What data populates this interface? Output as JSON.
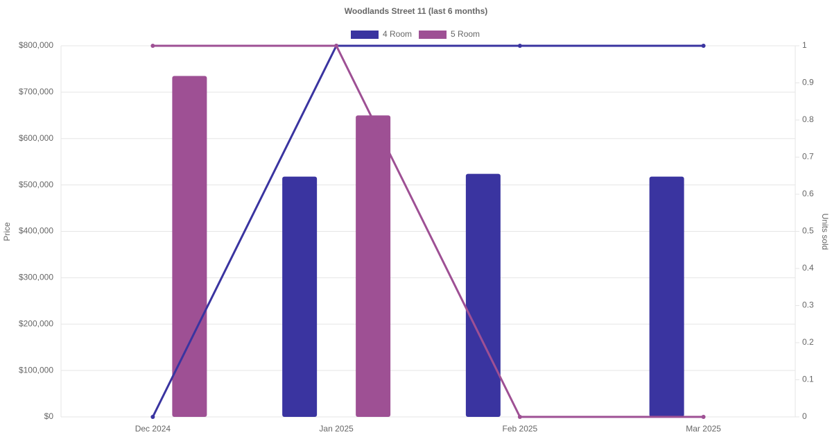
{
  "chart_data": {
    "type": "bar-line",
    "title": "Woodlands Street 11 (last 6 months)",
    "categories": [
      "Dec 2024",
      "Jan 2025",
      "Feb 2025",
      "Mar 2025"
    ],
    "series": [
      {
        "name": "4 Room",
        "type": "bar",
        "color": "#3a34a0",
        "values": [
          null,
          518000,
          524000,
          518000
        ]
      },
      {
        "name": "5 Room",
        "type": "bar",
        "color": "#9e5094",
        "values": [
          735000,
          650000,
          null,
          null
        ]
      },
      {
        "type": "line",
        "axis": "y2",
        "color": "#3a34a0",
        "values": [
          0,
          1,
          1,
          1
        ]
      },
      {
        "type": "line",
        "axis": "y2",
        "color": "#9e5094",
        "values": [
          1,
          1,
          0,
          0
        ]
      }
    ],
    "ylabel": "Price",
    "y2label": "Units sold",
    "ylim": [
      0,
      800000
    ],
    "yticks": [
      {
        "value": 0,
        "label": "$0"
      },
      {
        "value": 100000,
        "label": "$100,000"
      },
      {
        "value": 200000,
        "label": "$200,000"
      },
      {
        "value": 300000,
        "label": "$300,000"
      },
      {
        "value": 400000,
        "label": "$400,000"
      },
      {
        "value": 500000,
        "label": "$500,000"
      },
      {
        "value": 600000,
        "label": "$600,000"
      },
      {
        "value": 700000,
        "label": "$700,000"
      },
      {
        "value": 800000,
        "label": "$800,000"
      }
    ],
    "y2lim": [
      0,
      1
    ],
    "y2ticks": [
      0,
      0.1,
      0.2,
      0.3,
      0.4,
      0.5,
      0.6,
      0.7,
      0.8,
      0.9,
      1
    ],
    "grid": true
  }
}
